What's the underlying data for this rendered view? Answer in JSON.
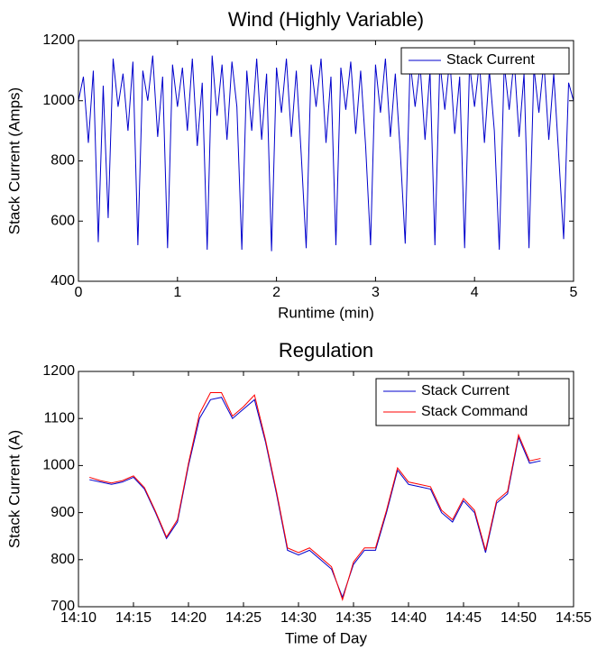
{
  "chart_data": [
    {
      "type": "line",
      "title": "Wind (Highly Variable)",
      "xlabel": "Runtime (min)",
      "ylabel": "Stack Current (Amps)",
      "xlim": [
        0,
        5
      ],
      "xticks": [
        0,
        1,
        2,
        3,
        4,
        5
      ],
      "ylim": [
        400,
        1200
      ],
      "yticks": [
        400,
        600,
        800,
        1000,
        1200
      ],
      "legend": "upper right",
      "x": [
        0,
        0.05,
        0.1,
        0.15,
        0.2,
        0.25,
        0.3,
        0.35,
        0.4,
        0.45,
        0.5,
        0.55,
        0.6,
        0.65,
        0.7,
        0.75,
        0.8,
        0.85,
        0.9,
        0.95,
        1,
        1.05,
        1.1,
        1.15,
        1.2,
        1.25,
        1.3,
        1.35,
        1.4,
        1.45,
        1.5,
        1.55,
        1.6,
        1.65,
        1.7,
        1.75,
        1.8,
        1.85,
        1.9,
        1.95,
        2,
        2.05,
        2.1,
        2.15,
        2.2,
        2.25,
        2.3,
        2.35,
        2.4,
        2.45,
        2.5,
        2.55,
        2.6,
        2.65,
        2.7,
        2.75,
        2.8,
        2.85,
        2.9,
        2.95,
        3,
        3.05,
        3.1,
        3.15,
        3.2,
        3.25,
        3.3,
        3.35,
        3.4,
        3.45,
        3.5,
        3.55,
        3.6,
        3.65,
        3.7,
        3.75,
        3.8,
        3.85,
        3.9,
        3.95,
        4,
        4.05,
        4.1,
        4.15,
        4.2,
        4.25,
        4.3,
        4.35,
        4.4,
        4.45,
        4.5,
        4.55,
        4.6,
        4.65,
        4.7,
        4.75,
        4.8,
        4.85,
        4.9,
        4.95,
        5
      ],
      "series": [
        {
          "name": "Stack Current",
          "color": "#0000cc",
          "values": [
            1000,
            1080,
            860,
            1100,
            530,
            1050,
            610,
            1140,
            980,
            1090,
            900,
            1130,
            520,
            1100,
            1000,
            1150,
            880,
            1080,
            510,
            1120,
            980,
            1110,
            900,
            1140,
            850,
            1060,
            505,
            1150,
            950,
            1120,
            870,
            1130,
            980,
            505,
            1100,
            900,
            1140,
            870,
            1090,
            500,
            1110,
            960,
            1140,
            880,
            1100,
            820,
            510,
            1120,
            980,
            1140,
            860,
            1080,
            520,
            1110,
            970,
            1130,
            890,
            1100,
            850,
            520,
            1120,
            960,
            1140,
            880,
            1090,
            830,
            525,
            1130,
            980,
            1120,
            870,
            1100,
            520,
            1130,
            970,
            1140,
            890,
            1080,
            510,
            1120,
            980,
            1130,
            860,
            1100,
            900,
            505,
            1120,
            970,
            1140,
            880,
            1090,
            510,
            1110,
            960,
            1130,
            870,
            1090,
            820,
            540,
            1060,
            1000
          ]
        }
      ]
    },
    {
      "type": "line",
      "title": "Regulation",
      "xlabel": "Time of Day",
      "ylabel": "Stack Current (A)",
      "xlim": [
        "14:10",
        "14:55"
      ],
      "xticks": [
        "14:10",
        "14:15",
        "14:20",
        "14:25",
        "14:30",
        "14:35",
        "14:40",
        "14:45",
        "14:50",
        "14:55"
      ],
      "ylim": [
        700,
        1200
      ],
      "yticks": [
        700,
        800,
        900,
        1000,
        1100,
        1200
      ],
      "legend": "upper right",
      "x": [
        "14:11",
        "14:12",
        "14:13",
        "14:14",
        "14:15",
        "14:16",
        "14:17",
        "14:18",
        "14:19",
        "14:20",
        "14:21",
        "14:22",
        "14:23",
        "14:24",
        "14:25",
        "14:26",
        "14:27",
        "14:28",
        "14:29",
        "14:30",
        "14:31",
        "14:32",
        "14:33",
        "14:34",
        "14:35",
        "14:36",
        "14:37",
        "14:38",
        "14:39",
        "14:40",
        "14:41",
        "14:42",
        "14:43",
        "14:44",
        "14:45",
        "14:46",
        "14:47",
        "14:48",
        "14:49",
        "14:50",
        "14:51",
        "14:52"
      ],
      "series": [
        {
          "name": "Stack Current",
          "color": "#0000cc",
          "values": [
            970,
            965,
            960,
            965,
            975,
            950,
            900,
            845,
            880,
            1000,
            1100,
            1140,
            1145,
            1100,
            1120,
            1140,
            1050,
            940,
            820,
            810,
            820,
            800,
            780,
            720,
            790,
            820,
            820,
            900,
            990,
            960,
            955,
            950,
            900,
            880,
            925,
            900,
            815,
            920,
            940,
            1060,
            1005,
            1010
          ]
        },
        {
          "name": "Stack Command",
          "color": "#ff0000",
          "values": [
            975,
            968,
            963,
            968,
            978,
            953,
            903,
            848,
            885,
            1005,
            1110,
            1155,
            1155,
            1105,
            1125,
            1150,
            1055,
            945,
            825,
            815,
            825,
            805,
            785,
            715,
            795,
            825,
            825,
            905,
            995,
            965,
            960,
            955,
            905,
            885,
            930,
            905,
            820,
            925,
            945,
            1065,
            1010,
            1015
          ]
        }
      ]
    }
  ]
}
